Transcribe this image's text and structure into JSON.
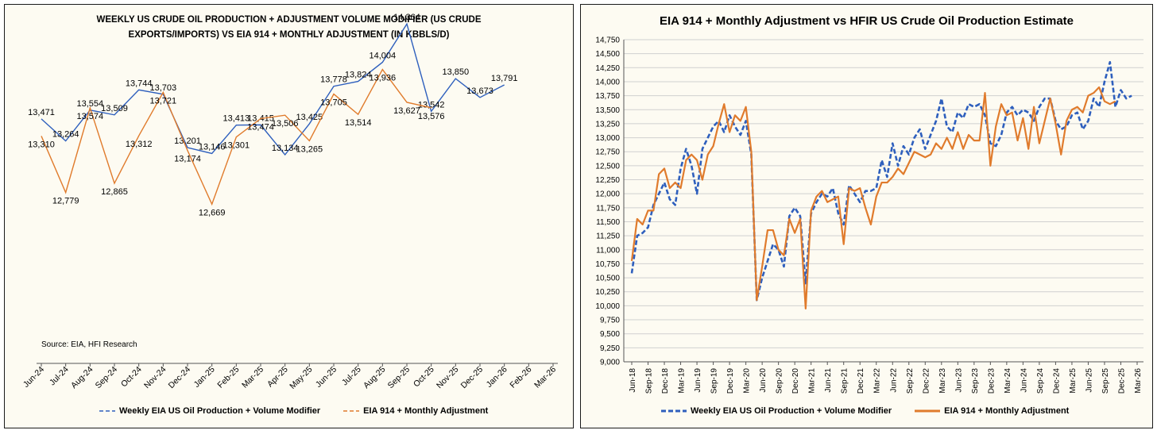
{
  "colors": {
    "weekly": "#2e5fbd",
    "eia": "#e07b2c",
    "grid": "#d0d0d0"
  },
  "legend": {
    "weekly_label": "Weekly EIA US Oil Production + Volume Modifier",
    "eia_label": "EIA 914 + Monthly Adjustment"
  },
  "chart_data": [
    {
      "type": "line",
      "title": "WEEKLY US CRUDE OIL PRODUCTION + ADJUSTMENT VOLUME MODIFIER (US CRUDE EXPORTS/IMPORTS) VS EIA 914 + MONTHLY ADJUSTMENT (IN KBBLS/D)",
      "source": "Source: EIA, HFI Research",
      "categories": [
        "Jun-24",
        "Jul-24",
        "Aug-24",
        "Sep-24",
        "Oct-24",
        "Nov-24",
        "Dec-24",
        "Jan-25",
        "Feb-25",
        "Mar-25",
        "Apr-25",
        "May-25",
        "Jun-25",
        "Jul-25",
        "Aug-25",
        "Sep-25",
        "Oct-25",
        "Nov-25",
        "Dec-25",
        "Jan-26",
        "Feb-26",
        "Mar-26"
      ],
      "grid": false,
      "legend_position": "bottom",
      "series": [
        {
          "name": "Weekly EIA US Oil Production + Volume Modifier",
          "style": "dashed",
          "values": [
            13471,
            13264,
            13554,
            13509,
            13744,
            13703,
            13201,
            13146,
            13413,
            13415,
            13134,
            13425,
            13778,
            13824,
            14004,
            14364,
            13542,
            13850,
            13673,
            13791,
            null,
            null
          ]
        },
        {
          "name": "EIA 914 + Monthly Adjustment",
          "style": "solid",
          "values": [
            13310,
            12779,
            13574,
            12865,
            13312,
            13721,
            13174,
            12669,
            13301,
            13474,
            13506,
            13265,
            13705,
            13514,
            13936,
            13627,
            13576,
            null,
            null,
            null,
            null,
            null
          ]
        }
      ],
      "labels": {
        "weekly": [
          "13,471",
          "13,264",
          "13,554",
          "13,509",
          "13,744",
          "13,703",
          "13,201",
          "13,146",
          "13,413",
          "13,415",
          "13,134",
          "13,425",
          "13,778",
          "13,824",
          "14,004",
          "14,364",
          "13,542",
          "13,850",
          "13,673",
          "13,791"
        ],
        "eia": [
          "13,310",
          "12,779",
          "13,574",
          "12,865",
          "13,312",
          "13,721",
          "13,174",
          "12,669",
          "13,301",
          "13,474",
          "13,506",
          "13,265",
          "13,705",
          "13,514",
          "13,936",
          "13,627",
          "13,576"
        ]
      }
    },
    {
      "type": "line",
      "title": "EIA 914 + Monthly Adjustment vs HFIR US Crude Oil Production Estimate",
      "ylim": [
        9000,
        14750
      ],
      "y_ticks": [
        9000,
        9250,
        9500,
        9750,
        10000,
        10250,
        10500,
        10750,
        11000,
        11250,
        11500,
        11750,
        12000,
        12250,
        12500,
        12750,
        13000,
        13250,
        13500,
        13750,
        14000,
        14250,
        14500,
        14750
      ],
      "y_tick_labels": [
        "9,000",
        "9,250",
        "9,500",
        "9,750",
        "10,000",
        "10,250",
        "10,500",
        "10,750",
        "11,000",
        "11,250",
        "11,500",
        "11,750",
        "12,000",
        "12,250",
        "12,500",
        "12,750",
        "13,000",
        "13,250",
        "13,500",
        "13,750",
        "14,000",
        "14,250",
        "14,500",
        "14,750"
      ],
      "x_tick_labels": [
        "Jun-18",
        "Sep-18",
        "Dec-18",
        "Mar-19",
        "Jun-19",
        "Sep-19",
        "Dec-19",
        "Mar-20",
        "Jun-20",
        "Sep-20",
        "Dec-20",
        "Mar-21",
        "Jun-21",
        "Sep-21",
        "Dec-21",
        "Mar-22",
        "Jun-22",
        "Sep-22",
        "Dec-22",
        "Mar-23",
        "Jun-23",
        "Sep-23",
        "Dec-23",
        "Mar-24",
        "Jun-24",
        "Sep-24",
        "Dec-24",
        "Mar-25",
        "Jun-25",
        "Sep-25",
        "Dec-25",
        "Mar-26"
      ],
      "grid": true,
      "legend_position": "bottom",
      "series": [
        {
          "name": "Weekly EIA US Oil Production + Volume Modifier",
          "style": "dashed",
          "values": [
            10580,
            11250,
            11300,
            11400,
            11800,
            12000,
            12200,
            11900,
            11800,
            12450,
            12800,
            12500,
            12000,
            12800,
            13000,
            13200,
            13300,
            13100,
            13400,
            13200,
            13050,
            13300,
            12700,
            10100,
            10500,
            10800,
            11100,
            11000,
            10700,
            11600,
            11750,
            11600,
            10400,
            11650,
            11850,
            12000,
            11950,
            12100,
            11650,
            11450,
            12150,
            12000,
            11850,
            12050,
            12050,
            12100,
            12600,
            12300,
            12900,
            12500,
            12850,
            12700,
            13000,
            13150,
            12800,
            13050,
            13300,
            13700,
            13200,
            13100,
            13450,
            13350,
            13600,
            13550,
            13600,
            13400,
            12900,
            12850,
            13050,
            13450,
            13550,
            13400,
            13500,
            13450,
            13300,
            13550,
            13700,
            13700,
            13300,
            13150,
            13200,
            13400,
            13450,
            13150,
            13300,
            13700,
            13550,
            14000,
            14350,
            13550,
            13850,
            13700,
            13750
          ]
        },
        {
          "name": "EIA 914 + Monthly Adjustment",
          "style": "solid",
          "values": [
            10800,
            11550,
            11450,
            11700,
            11700,
            12350,
            12450,
            12100,
            12200,
            12100,
            12600,
            12700,
            12600,
            12250,
            12700,
            12850,
            13250,
            13600,
            13100,
            13400,
            13300,
            13550,
            12750,
            10100,
            10700,
            11350,
            11350,
            11000,
            10900,
            11550,
            11300,
            11550,
            9950,
            11700,
            11950,
            12050,
            11850,
            11900,
            11950,
            11100,
            12100,
            12050,
            12100,
            11750,
            11450,
            11950,
            12200,
            12200,
            12300,
            12450,
            12350,
            12550,
            12750,
            12700,
            12650,
            12700,
            12900,
            12800,
            13000,
            12800,
            13100,
            12800,
            13050,
            12950,
            12950,
            13800,
            12500,
            13200,
            13600,
            13400,
            13450,
            12950,
            13350,
            12800,
            13550,
            12900,
            13300,
            13700,
            13250,
            12700,
            13300,
            13500,
            13550,
            13450,
            13750,
            13800,
            13900,
            13650,
            13600,
            13650
          ]
        }
      ]
    }
  ]
}
